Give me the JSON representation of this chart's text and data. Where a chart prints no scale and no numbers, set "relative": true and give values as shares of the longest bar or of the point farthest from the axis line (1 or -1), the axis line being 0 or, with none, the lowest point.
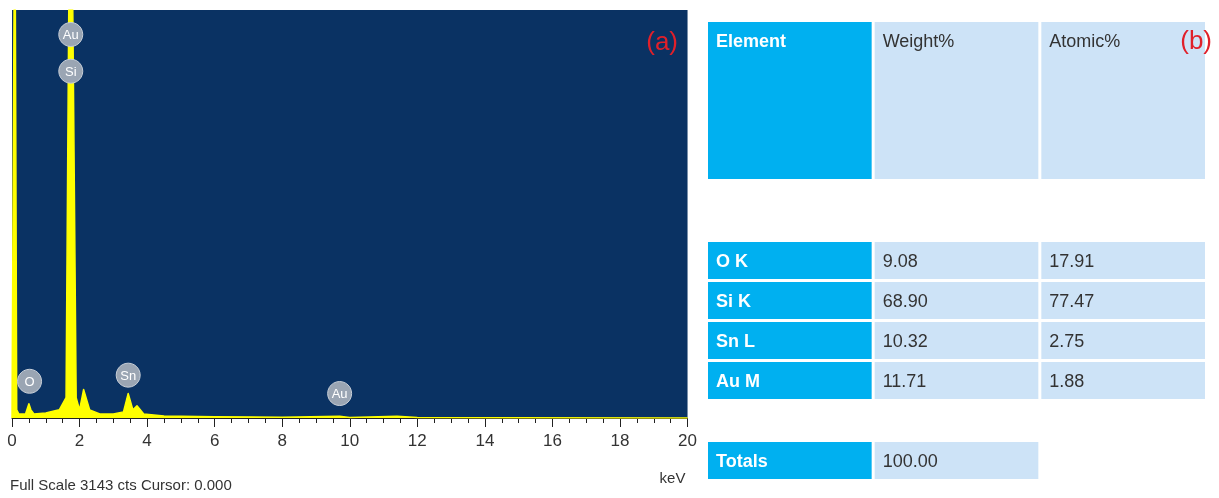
{
  "chart_data": [
    {
      "type": "area",
      "relative": true,
      "xlabel": "keV",
      "color": "#ffff00",
      "x": [
        0,
        0.06,
        0.1,
        0.14,
        0.2,
        0.4,
        0.5,
        0.56,
        0.65,
        1.0,
        1.4,
        1.6,
        1.68,
        1.8,
        1.9,
        2.0,
        2.12,
        2.3,
        2.6,
        3.0,
        3.3,
        3.44,
        3.58,
        3.7,
        3.9,
        4.5,
        6,
        8,
        9.7,
        10,
        11.4,
        12,
        20
      ],
      "values": [
        0,
        1,
        1,
        0.02,
        0.01,
        0.01,
        0.035,
        0.02,
        0.01,
        0.012,
        0.02,
        0.05,
        1,
        1,
        0.05,
        0.02,
        0.07,
        0.02,
        0.01,
        0.01,
        0.015,
        0.06,
        0.02,
        0.03,
        0.01,
        0.005,
        0.003,
        0.002,
        0.004,
        0.001,
        0.004,
        0.001,
        0
      ],
      "xlim": [
        0,
        20
      ],
      "xticks": [
        0,
        2,
        4,
        6,
        8,
        10,
        12,
        14,
        16,
        18,
        20
      ],
      "annotations": [
        "(a)",
        "Full Scale 3143 cts Cursor: 0.000",
        {
          "text": "O",
          "x": 0.52,
          "y": 0.09
        },
        {
          "text": "Si",
          "x": 1.74,
          "y": 0.85
        },
        {
          "text": "Au",
          "x": 1.74,
          "y": 0.94
        },
        {
          "text": "Sn",
          "x": 3.44,
          "y": 0.105
        },
        {
          "text": "Au",
          "x": 9.7,
          "y": 0.06
        }
      ]
    },
    {
      "type": "other",
      "title": "(b)",
      "color": "#cde3f7",
      "categories": [
        "Element",
        "Weight%",
        "Atomic%"
      ],
      "y_categories": [
        "O K",
        "Si K",
        "Sn L",
        "Au M",
        "Totals"
      ],
      "cell_labels": [
        [
          "9.08",
          "17.91"
        ],
        [
          "68.90",
          "77.47"
        ],
        [
          "10.32",
          "2.75"
        ],
        [
          "11.71",
          "1.88"
        ],
        [
          "100.00",
          null
        ]
      ]
    }
  ]
}
